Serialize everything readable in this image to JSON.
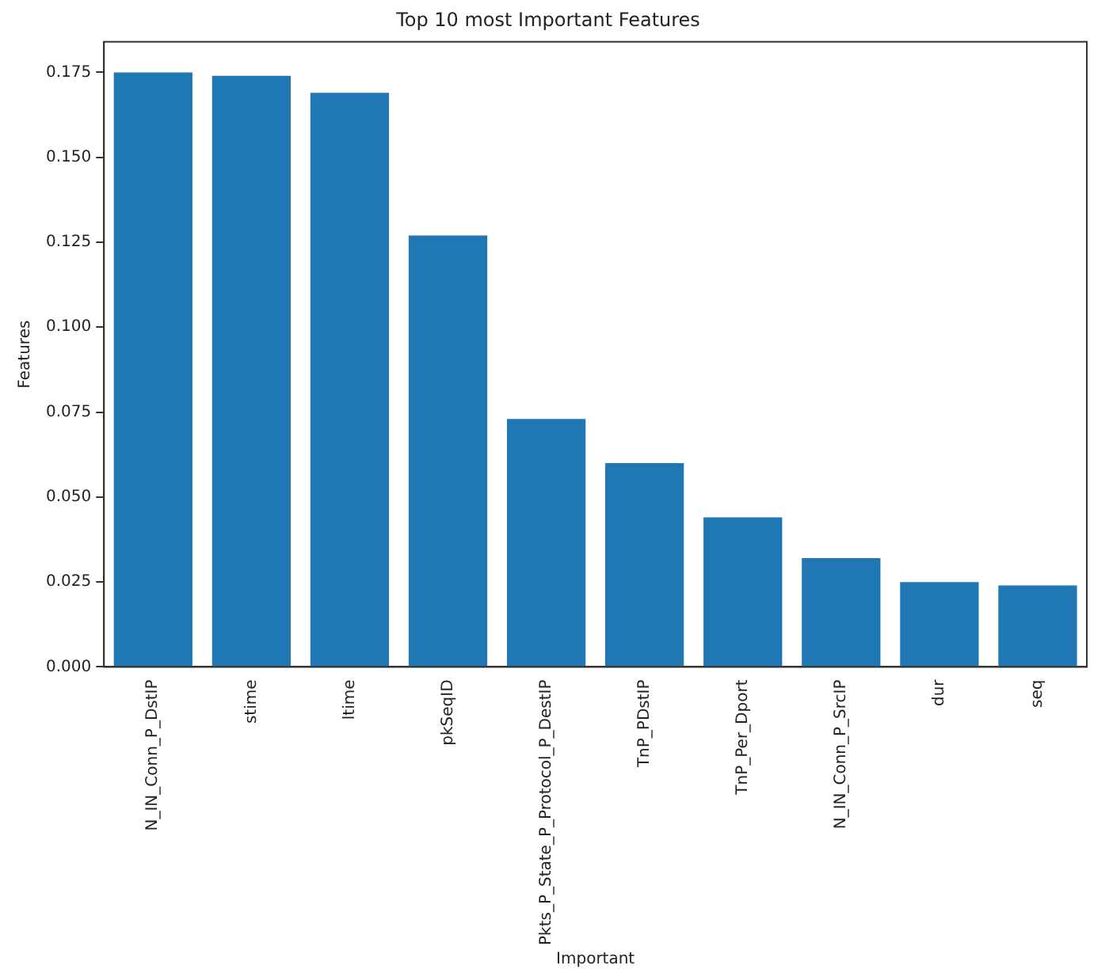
{
  "chart_data": {
    "type": "bar",
    "title": "Top 10 most Important Features",
    "xlabel": "Important",
    "ylabel": "Features",
    "categories": [
      "N_IN_Conn_P_DstIP",
      "stime",
      "ltime",
      "pkSeqID",
      "Pkts_P_State_P_Protocol_P_DestIP",
      "TnP_PDstIP",
      "TnP_Per_Dport",
      "N_IN_Conn_P_SrcIP",
      "dur",
      "seq"
    ],
    "values": [
      0.175,
      0.174,
      0.169,
      0.127,
      0.073,
      0.06,
      0.044,
      0.032,
      0.025,
      0.024
    ],
    "color": "#1f77b4",
    "ylim": [
      0,
      0.184
    ],
    "yticks": [
      {
        "value": 0,
        "label": "0.000"
      },
      {
        "value": 0.025,
        "label": "0.025"
      },
      {
        "value": 0.05,
        "label": "0.050"
      },
      {
        "value": 0.075,
        "label": "0.075"
      },
      {
        "value": 0.1,
        "label": "0.100"
      },
      {
        "value": 0.125,
        "label": "0.125"
      },
      {
        "value": 0.15,
        "label": "0.150"
      },
      {
        "value": 0.175,
        "label": "0.175"
      }
    ],
    "grid": false,
    "legend": false
  }
}
